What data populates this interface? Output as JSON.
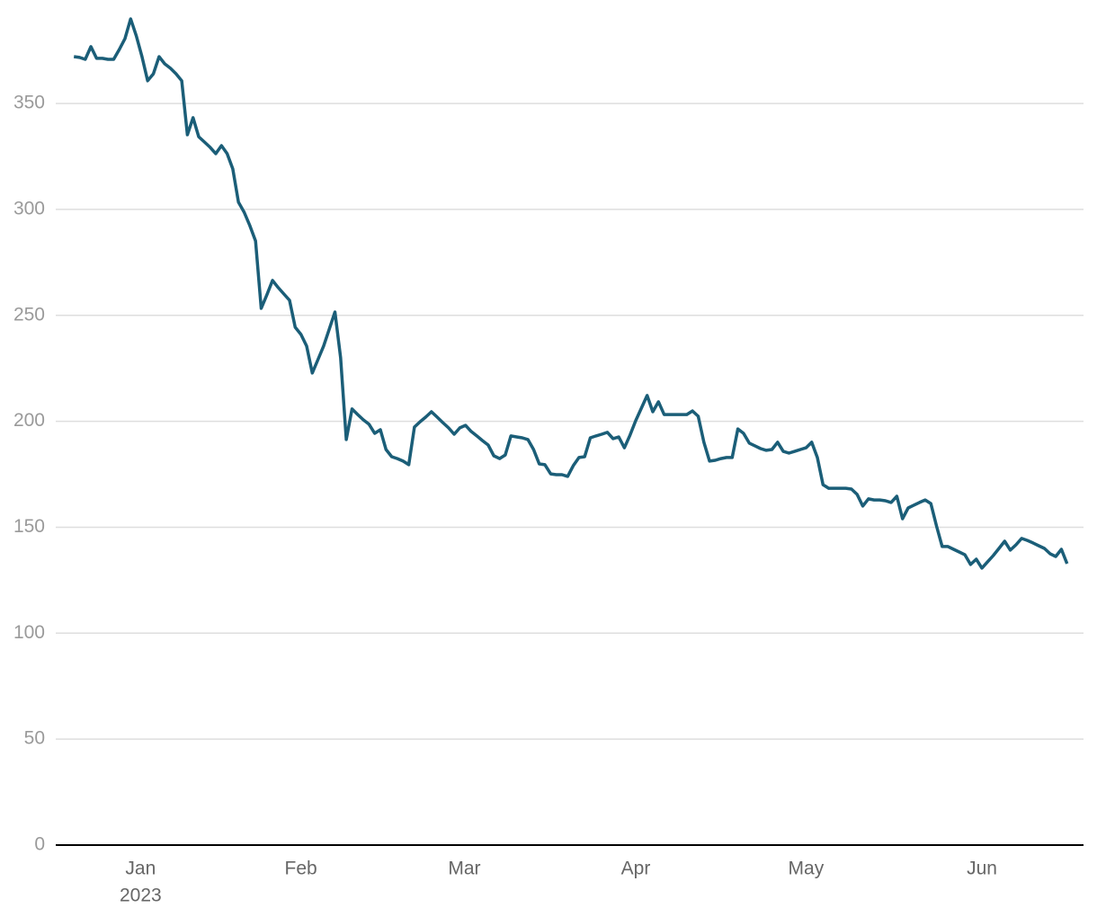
{
  "chart_data": {
    "type": "line",
    "series": [
      {
        "color": "#1b5e78",
        "values": [
          372.1,
          371.7,
          370.8,
          376.8,
          371.3,
          371.3,
          370.8,
          370.8,
          375.5,
          380.6,
          389.9,
          381.9,
          372.1,
          360.7,
          364.0,
          372.1,
          368.7,
          366.6,
          364.0,
          360.7,
          335.2,
          343.3,
          334.3,
          331.8,
          329.3,
          326.3,
          330.1,
          326.3,
          319.1,
          303.4,
          298.7,
          292.3,
          285.1,
          253.3,
          259.7,
          266.5,
          263.1,
          260.1,
          257.1,
          244.4,
          241.0,
          235.5,
          222.8,
          229.1,
          235.5,
          243.5,
          251.6,
          230.0,
          191.4,
          205.8,
          203.2,
          200.7,
          198.6,
          194.3,
          196.0,
          186.7,
          183.3,
          182.4,
          181.2,
          179.5,
          197.3,
          199.8,
          202.0,
          204.5,
          202.0,
          199.4,
          196.9,
          193.9,
          196.9,
          198.1,
          195.2,
          193.1,
          190.9,
          188.8,
          183.7,
          182.4,
          184.1,
          193.1,
          192.6,
          192.2,
          191.4,
          186.7,
          179.9,
          179.5,
          175.2,
          174.8,
          174.8,
          174.0,
          179.1,
          182.9,
          183.3,
          192.2,
          193.1,
          193.9,
          194.8,
          191.8,
          192.6,
          187.5,
          193.5,
          200.3,
          206.2,
          212.2,
          204.5,
          209.2,
          203.2,
          203.2,
          203.2,
          203.2,
          203.2,
          204.9,
          202.4,
          190.1,
          181.2,
          181.6,
          182.4,
          182.9,
          182.9,
          196.4,
          194.3,
          189.7,
          188.4,
          187.1,
          186.3,
          186.7,
          190.1,
          185.8,
          185.0,
          185.8,
          186.7,
          187.5,
          190.1,
          182.9,
          170.1,
          168.4,
          168.4,
          168.4,
          168.4,
          168.0,
          165.5,
          160.0,
          163.4,
          162.9,
          162.9,
          162.5,
          161.7,
          164.6,
          154.0,
          159.1,
          160.4,
          161.7,
          162.9,
          161.2,
          150.6,
          140.9,
          140.9,
          139.6,
          138.3,
          137.0,
          132.4,
          134.9,
          130.7,
          133.7,
          136.6,
          140.0,
          143.4,
          139.2,
          141.7,
          144.7,
          143.8,
          142.6,
          141.3,
          140.0,
          137.5,
          136.2,
          139.6,
          132.8
        ]
      }
    ],
    "xlim": [
      -3.2,
      177.9
    ],
    "xticks": [
      {
        "value": 11.75,
        "label": "Jan",
        "sublabel": "2023"
      },
      {
        "value": 40,
        "label": "Feb"
      },
      {
        "value": 68.8,
        "label": "Mar"
      },
      {
        "value": 99,
        "label": "Apr"
      },
      {
        "value": 129,
        "label": "May"
      },
      {
        "value": 160,
        "label": "Jun"
      }
    ],
    "ylim": [
      0,
      395
    ],
    "yticks": [
      0,
      50,
      100,
      150,
      200,
      250,
      300,
      350
    ],
    "grid": true
  }
}
